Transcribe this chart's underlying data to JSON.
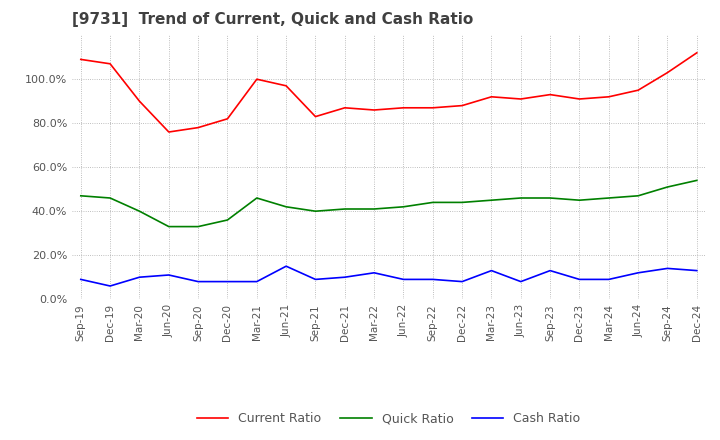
{
  "title": "[9731]  Trend of Current, Quick and Cash Ratio",
  "title_fontsize": 11,
  "title_color": "#404040",
  "x_labels": [
    "Sep-19",
    "Dec-19",
    "Mar-20",
    "Jun-20",
    "Sep-20",
    "Dec-20",
    "Mar-21",
    "Jun-21",
    "Sep-21",
    "Dec-21",
    "Mar-22",
    "Jun-22",
    "Sep-22",
    "Dec-22",
    "Mar-23",
    "Jun-23",
    "Sep-23",
    "Dec-23",
    "Mar-24",
    "Jun-24",
    "Sep-24",
    "Dec-24"
  ],
  "current_ratio": [
    109,
    107,
    90,
    76,
    78,
    82,
    100,
    97,
    83,
    87,
    86,
    87,
    87,
    88,
    92,
    91,
    93,
    91,
    92,
    95,
    103,
    112
  ],
  "quick_ratio": [
    47,
    46,
    40,
    33,
    33,
    36,
    46,
    42,
    40,
    41,
    41,
    42,
    44,
    44,
    45,
    46,
    46,
    45,
    46,
    47,
    51,
    54
  ],
  "cash_ratio": [
    9,
    6,
    10,
    11,
    8,
    8,
    8,
    15,
    9,
    10,
    12,
    9,
    9,
    8,
    13,
    8,
    13,
    9,
    9,
    12,
    14,
    13
  ],
  "current_color": "#ff0000",
  "quick_color": "#008000",
  "cash_color": "#0000ff",
  "ylim": [
    0,
    120
  ],
  "yticks": [
    0,
    20,
    40,
    60,
    80,
    100
  ],
  "ytick_labels": [
    "0.0%",
    "20.0%",
    "40.0%",
    "60.0%",
    "80.0%",
    "100.0%"
  ],
  "background_color": "#ffffff",
  "grid_color": "#aaaaaa",
  "legend_labels": [
    "Current Ratio",
    "Quick Ratio",
    "Cash Ratio"
  ]
}
